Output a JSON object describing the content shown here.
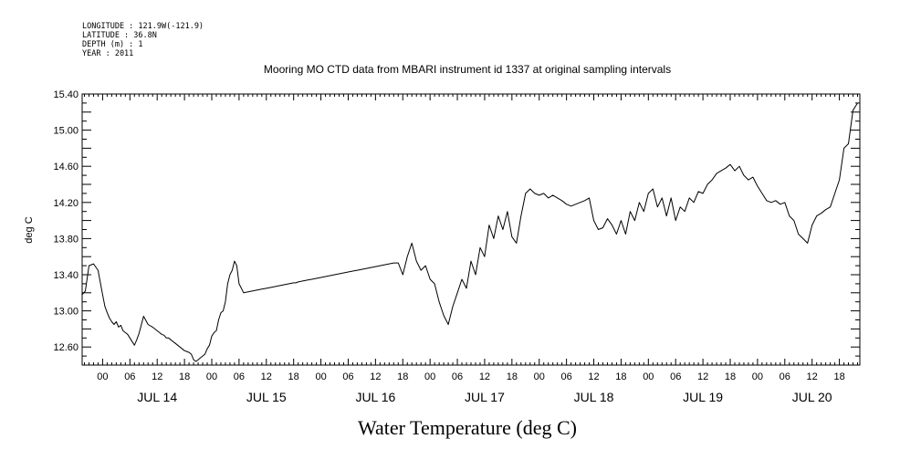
{
  "header": {
    "longitude": "LONGITUDE : 121.9W(-121.9)",
    "latitude": "LATITUDE : 36.8N",
    "depth": "DEPTH (m) : 1",
    "year": "YEAR : 2011"
  },
  "chart_data": {
    "type": "line",
    "title": "Mooring MO CTD data from MBARI instrument id 1337 at original sampling intervals",
    "xlabel": "Water Temperature (deg C)",
    "ylabel": "deg C",
    "ylim": [
      12.4,
      15.4
    ],
    "xlim_hours": [
      -4.5,
      166.5
    ],
    "x_unit": "hours since JUL 14 00:00 (2011)",
    "yticks": [
      "12.60",
      "13.00",
      "13.40",
      "13.80",
      "14.20",
      "14.60",
      "15.00",
      "15.40"
    ],
    "hour_tick_labels": [
      "00",
      "06",
      "12",
      "18"
    ],
    "day_labels": [
      "JUL 14",
      "JUL 15",
      "JUL 16",
      "JUL 17",
      "JUL 18",
      "JUL 19",
      "JUL 20"
    ],
    "grid": false,
    "legend": "none",
    "line_color": "#000000",
    "series": [
      {
        "x": [
          -4.5,
          -3.8,
          -3.0,
          -2.0,
          -1.0,
          0.0,
          0.5,
          1.0,
          1.5,
          2.0,
          2.5,
          3.0,
          3.5,
          4.0,
          4.5,
          5.0,
          5.5,
          6.0,
          6.5,
          7.0,
          7.5,
          8.0,
          9.0,
          10.0,
          11.0,
          12.0,
          12.5,
          13.0,
          13.5,
          14.0,
          14.5,
          15.0,
          15.5,
          16.0,
          16.5,
          17.0,
          17.5,
          18.0,
          18.5,
          19.0,
          19.5,
          20.0,
          20.5,
          21.0,
          21.5,
          22.0,
          22.5,
          23.0,
          23.5,
          24.0,
          24.5,
          25.0,
          25.5,
          26.0,
          26.5,
          27.0,
          27.5,
          28.0,
          28.5,
          29.0,
          29.5,
          30.0,
          31.0,
          32.0,
          33.0,
          34.0,
          35.0,
          36.0,
          37.0,
          38.0,
          39.0,
          40.0,
          41.0,
          42.0,
          42.5,
          43.0,
          44.0,
          45.0,
          46.0,
          47.0,
          48.0,
          49.0,
          50.0,
          51.0,
          52.0,
          53.0,
          54.0,
          55.0,
          56.0,
          57.0,
          58.0,
          59.0,
          60.0,
          61.0,
          62.0,
          63.0,
          64.0,
          65.0,
          66.0,
          67.0,
          68.0,
          69.0,
          70.0,
          71.0,
          72.0,
          73.0,
          74.0,
          75.0,
          76.0,
          77.0,
          78.0,
          79.0,
          80.0,
          81.0,
          82.0,
          83.0,
          84.0,
          85.0,
          86.0,
          87.0,
          88.0,
          89.0,
          90.0,
          91.0,
          92.0,
          93.0,
          94.0,
          95.0,
          96.0,
          97.0,
          98.0,
          99.0,
          100.0,
          101.0,
          102.0,
          103.0,
          104.0,
          105.0,
          106.0,
          107.0,
          108.0,
          109.0,
          110.0,
          111.0,
          112.0,
          113.0,
          114.0,
          115.0,
          116.0,
          117.0,
          118.0,
          119.0,
          120.0,
          121.0,
          122.0,
          123.0,
          124.0,
          125.0,
          126.0,
          127.0,
          128.0,
          129.0,
          130.0,
          131.0,
          132.0,
          133.0,
          134.0,
          135.0,
          136.0,
          137.0,
          138.0,
          139.0,
          140.0,
          141.0,
          142.0,
          143.0,
          144.0,
          145.0,
          146.0,
          147.0,
          148.0,
          149.0,
          150.0,
          151.0,
          152.0,
          153.0,
          154.0,
          155.0,
          156.0,
          157.0,
          158.0,
          159.0,
          160.0,
          161.0,
          162.0,
          163.0,
          164.0,
          165.0,
          166.0
        ],
        "y": [
          13.18,
          13.22,
          13.5,
          13.52,
          13.45,
          13.18,
          13.05,
          12.98,
          12.92,
          12.88,
          12.85,
          12.88,
          12.82,
          12.84,
          12.78,
          12.76,
          12.74,
          12.7,
          12.66,
          12.62,
          12.68,
          12.75,
          12.94,
          12.85,
          12.82,
          12.78,
          12.76,
          12.74,
          12.73,
          12.7,
          12.7,
          12.68,
          12.66,
          12.64,
          12.62,
          12.6,
          12.58,
          12.56,
          12.55,
          12.54,
          12.52,
          12.46,
          12.44,
          12.46,
          12.48,
          12.5,
          12.52,
          12.58,
          12.62,
          12.72,
          12.76,
          12.78,
          12.9,
          12.98,
          13.0,
          13.1,
          13.3,
          13.4,
          13.45,
          13.55,
          13.5,
          13.3,
          13.2,
          13.21,
          13.22,
          13.23,
          13.24,
          13.25,
          13.26,
          13.27,
          13.28,
          13.29,
          13.3,
          13.31,
          13.31,
          13.32,
          13.33,
          13.34,
          13.35,
          13.36,
          13.37,
          13.38,
          13.39,
          13.4,
          13.41,
          13.42,
          13.43,
          13.44,
          13.45,
          13.46,
          13.47,
          13.48,
          13.49,
          13.5,
          13.51,
          13.52,
          13.53,
          13.53,
          13.4,
          13.6,
          13.75,
          13.55,
          13.45,
          13.5,
          13.35,
          13.3,
          13.1,
          12.95,
          12.85,
          13.05,
          13.2,
          13.35,
          13.25,
          13.55,
          13.4,
          13.7,
          13.6,
          13.95,
          13.8,
          14.05,
          13.9,
          14.1,
          13.82,
          13.75,
          14.05,
          14.3,
          14.35,
          14.3,
          14.28,
          14.3,
          14.25,
          14.28,
          14.25,
          14.22,
          14.18,
          14.16,
          14.18,
          14.2,
          14.22,
          14.25,
          14.0,
          13.9,
          13.92,
          14.02,
          13.95,
          13.85,
          14.0,
          13.85,
          14.1,
          14.0,
          14.2,
          14.1,
          14.3,
          14.35,
          14.15,
          14.25,
          14.05,
          14.25,
          14.0,
          14.15,
          14.1,
          14.25,
          14.2,
          14.32,
          14.3,
          14.4,
          14.45,
          14.52,
          14.55,
          14.58,
          14.62,
          14.55,
          14.6,
          14.5,
          14.45,
          14.48,
          14.38,
          14.3,
          14.22,
          14.2,
          14.22,
          14.18,
          14.2,
          14.05,
          14.0,
          13.85,
          13.8,
          13.75,
          13.95,
          14.05,
          14.08,
          14.12,
          14.15,
          14.3,
          14.45,
          14.8,
          14.85,
          15.22,
          15.3
        ]
      }
    ]
  }
}
